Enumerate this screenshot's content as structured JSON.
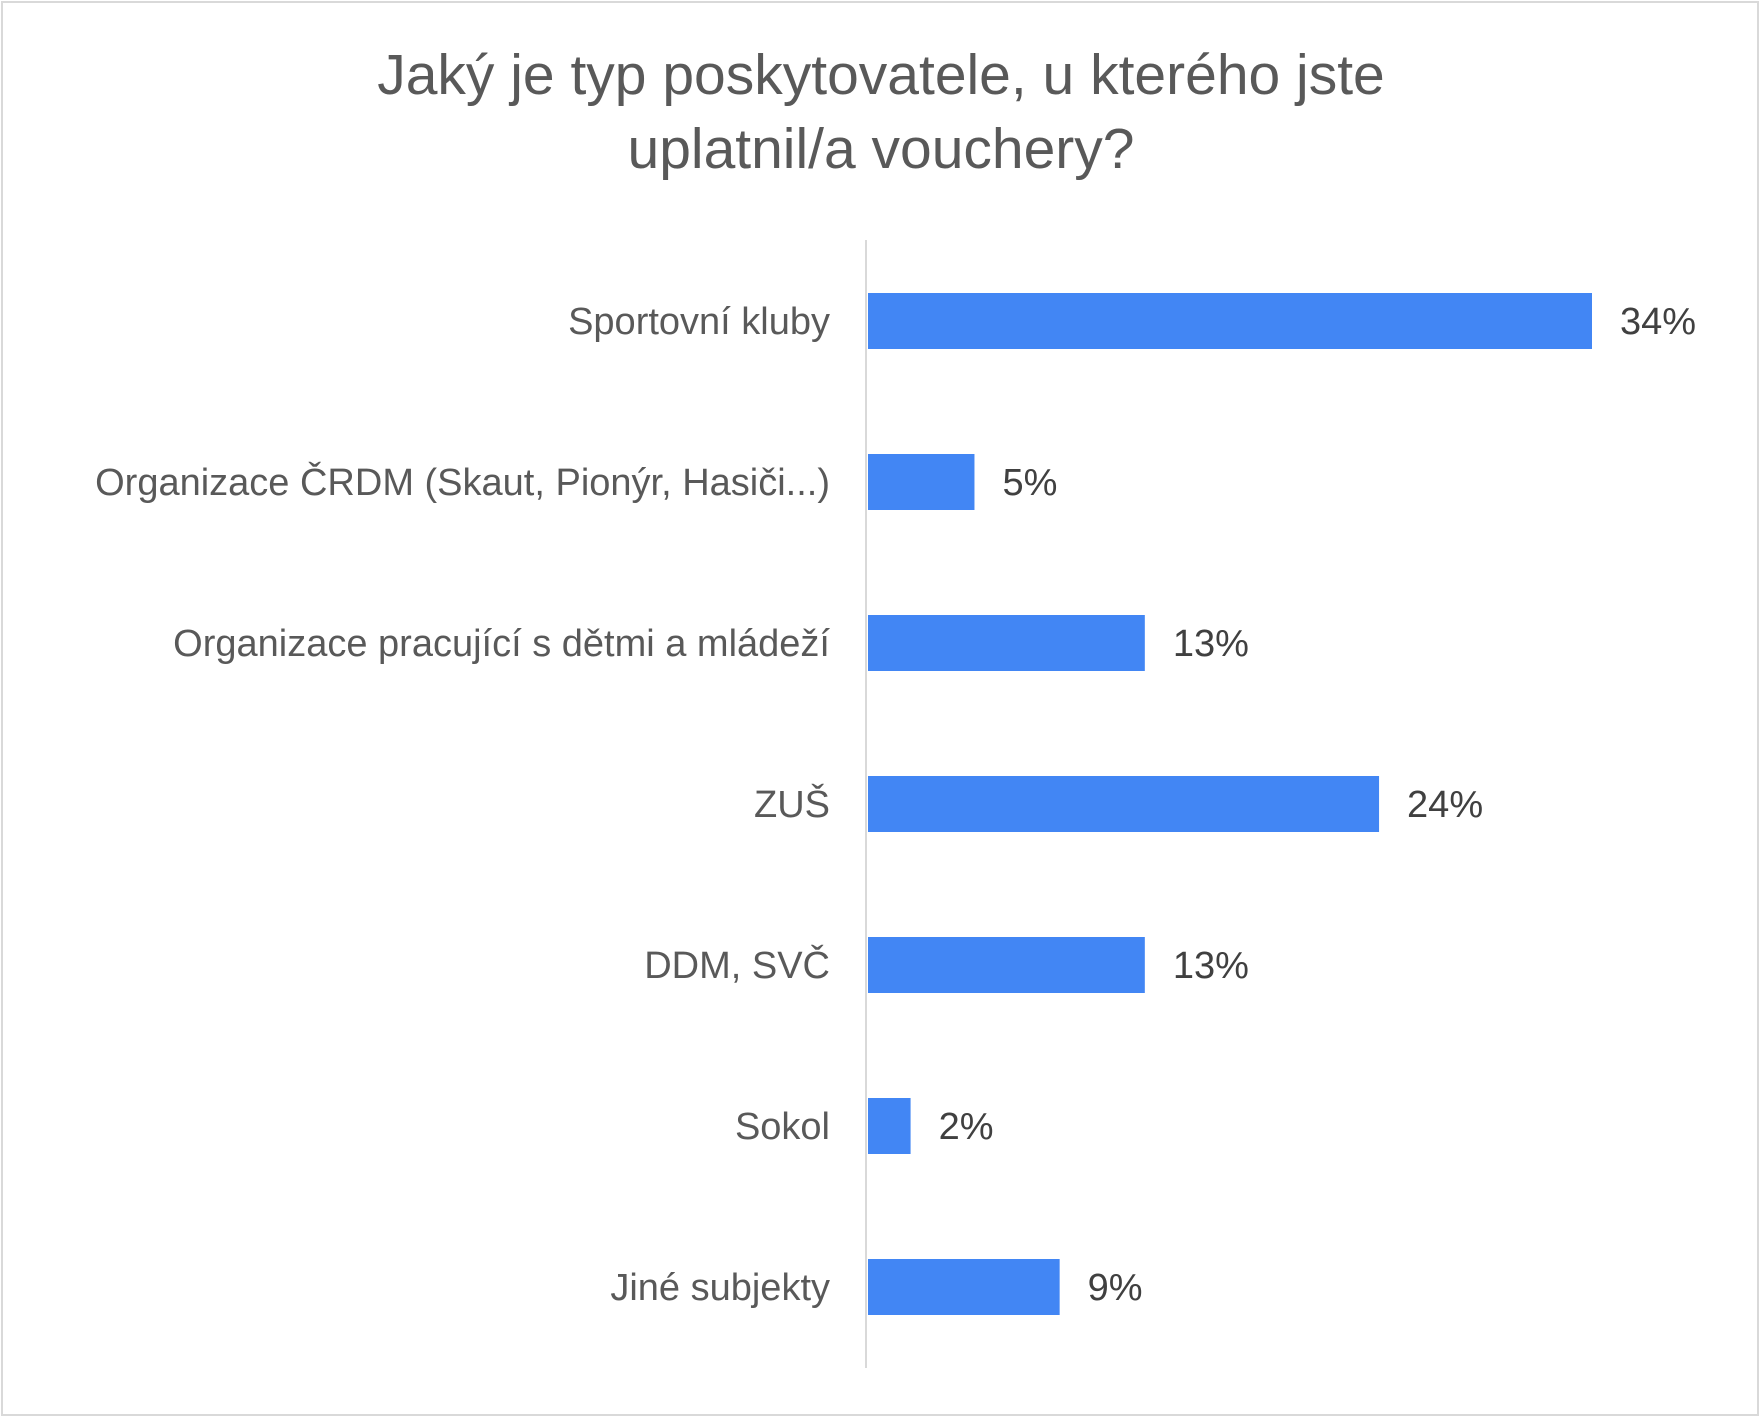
{
  "chart_data": {
    "type": "bar",
    "orientation": "horizontal",
    "title_lines": [
      "Jaký je typ poskytovatele, u kterého jste",
      "uplatnil/a vouchery?"
    ],
    "categories": [
      "Sportovní kluby",
      "Organizace ČRDM (Skaut, Pionýr, Hasiči...)",
      "Organizace pracující s dětmi a mládeží",
      "ZUŠ",
      "DDM, SVČ",
      "Sokol",
      "Jiné subjekty"
    ],
    "values": [
      34,
      5,
      13,
      24,
      13,
      2,
      9
    ],
    "data_labels": [
      "34%",
      "5%",
      "13%",
      "24%",
      "13%",
      "2%",
      "9%"
    ],
    "unit": "%",
    "xlim": [
      0,
      40
    ],
    "grid": false,
    "legend": "none",
    "bar_color": "#4286f4"
  }
}
